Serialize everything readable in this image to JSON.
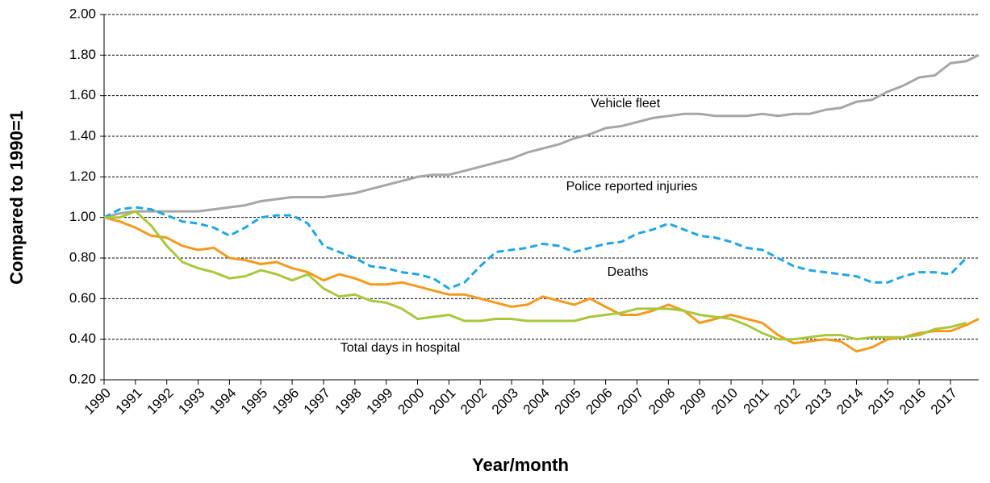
{
  "chart_data": {
    "type": "line",
    "xlabel": "Year/month",
    "ylabel": "Compared to 1990=1",
    "x": [
      1990,
      1990.5,
      1991,
      1991.5,
      1992,
      1992.5,
      1993,
      1993.5,
      1994,
      1994.5,
      1995,
      1995.5,
      1996,
      1996.5,
      1997,
      1997.5,
      1998,
      1998.5,
      1999,
      1999.5,
      2000,
      2000.5,
      2001,
      2001.5,
      2002,
      2002.5,
      2003,
      2003.5,
      2004,
      2004.5,
      2005,
      2005.5,
      2006,
      2006.5,
      2007,
      2007.5,
      2008,
      2008.5,
      2009,
      2009.5,
      2010,
      2010.5,
      2011,
      2011.5,
      2012,
      2012.5,
      2013,
      2013.5,
      2014,
      2014.5,
      2015,
      2015.5,
      2016,
      2016.5,
      2017,
      2017.5,
      2017.9
    ],
    "xlim": [
      1990,
      2017.9
    ],
    "xticks": [
      1990,
      1991,
      1992,
      1993,
      1994,
      1995,
      1996,
      1997,
      1998,
      1999,
      2000,
      2001,
      2002,
      2003,
      2004,
      2005,
      2006,
      2007,
      2008,
      2009,
      2010,
      2011,
      2012,
      2013,
      2014,
      2015,
      2016,
      2017
    ],
    "ylim": [
      0.2,
      2.0
    ],
    "yticks": [
      {
        "value": 0.2,
        "label": "0.20"
      },
      {
        "value": 0.4,
        "label": "0.40"
      },
      {
        "value": 0.6,
        "label": "0.60"
      },
      {
        "value": 0.8,
        "label": "0.80"
      },
      {
        "value": 1.0,
        "label": "1.00"
      },
      {
        "value": 1.2,
        "label": "1.20"
      },
      {
        "value": 1.4,
        "label": "1.40"
      },
      {
        "value": 1.6,
        "label": "1.60"
      },
      {
        "value": 1.8,
        "label": "1.80"
      },
      {
        "value": 2.0,
        "label": "2.00"
      }
    ],
    "grid": true,
    "series": [
      {
        "name": "Vehicle fleet",
        "color": "#a6a6a6",
        "dashed": false,
        "values": [
          1.0,
          1.02,
          1.03,
          1.03,
          1.03,
          1.03,
          1.03,
          1.04,
          1.05,
          1.06,
          1.08,
          1.09,
          1.1,
          1.1,
          1.1,
          1.11,
          1.12,
          1.14,
          1.16,
          1.18,
          1.2,
          1.21,
          1.21,
          1.23,
          1.25,
          1.27,
          1.29,
          1.32,
          1.34,
          1.36,
          1.39,
          1.41,
          1.44,
          1.45,
          1.47,
          1.49,
          1.5,
          1.51,
          1.51,
          1.5,
          1.5,
          1.5,
          1.51,
          1.5,
          1.51,
          1.51,
          1.53,
          1.54,
          1.57,
          1.58,
          1.62,
          1.65,
          1.69,
          1.7,
          1.76,
          1.77,
          1.8
        ]
      },
      {
        "name": "Police reported injuries",
        "color": "#1fa6e3",
        "dashed": true,
        "values": [
          1.0,
          1.04,
          1.05,
          1.04,
          1.01,
          0.98,
          0.97,
          0.95,
          0.91,
          0.95,
          1.0,
          1.01,
          1.01,
          0.97,
          0.86,
          0.83,
          0.8,
          0.76,
          0.75,
          0.73,
          0.72,
          0.7,
          0.65,
          0.68,
          0.76,
          0.83,
          0.84,
          0.85,
          0.87,
          0.86,
          0.83,
          0.85,
          0.87,
          0.88,
          0.92,
          0.94,
          0.97,
          0.94,
          0.91,
          0.9,
          0.88,
          0.85,
          0.84,
          0.8,
          0.76,
          0.74,
          0.73,
          0.72,
          0.71,
          0.68,
          0.68,
          0.71,
          0.73,
          0.73,
          0.72,
          0.8,
          null
        ]
      },
      {
        "name": "Deaths",
        "color": "#f39a1e",
        "dashed": false,
        "values": [
          1.0,
          0.98,
          0.95,
          0.91,
          0.9,
          0.86,
          0.84,
          0.85,
          0.8,
          0.79,
          0.77,
          0.78,
          0.75,
          0.73,
          0.69,
          0.72,
          0.7,
          0.67,
          0.67,
          0.68,
          0.66,
          0.64,
          0.62,
          0.62,
          0.6,
          0.58,
          0.56,
          0.57,
          0.61,
          0.59,
          0.57,
          0.6,
          0.56,
          0.52,
          0.52,
          0.54,
          0.57,
          0.54,
          0.48,
          0.5,
          0.52,
          0.5,
          0.48,
          0.42,
          0.38,
          0.39,
          0.4,
          0.39,
          0.34,
          0.36,
          0.4,
          0.41,
          0.43,
          0.44,
          0.44,
          0.47,
          0.5
        ]
      },
      {
        "name": "Total days in hospital",
        "color": "#a9c73c",
        "dashed": false,
        "values": [
          1.0,
          1.0,
          1.03,
          0.96,
          0.86,
          0.78,
          0.75,
          0.73,
          0.7,
          0.71,
          0.74,
          0.72,
          0.69,
          0.72,
          0.65,
          0.61,
          0.62,
          0.59,
          0.58,
          0.55,
          0.5,
          0.51,
          0.52,
          0.49,
          0.49,
          0.5,
          0.5,
          0.49,
          0.49,
          0.49,
          0.49,
          0.51,
          0.52,
          0.53,
          0.55,
          0.55,
          0.55,
          0.54,
          0.52,
          0.51,
          0.5,
          0.47,
          0.43,
          0.4,
          0.4,
          0.41,
          0.42,
          0.42,
          0.4,
          0.41,
          0.41,
          0.41,
          0.42,
          0.45,
          0.46,
          0.48,
          null
        ]
      }
    ]
  }
}
